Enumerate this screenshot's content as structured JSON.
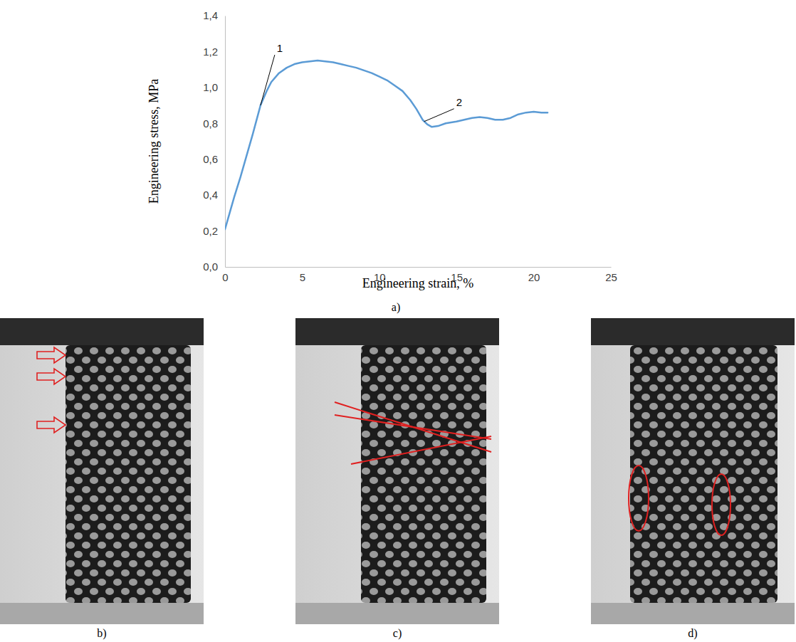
{
  "chart_data": {
    "type": "line",
    "panel_label": "a)",
    "x_label": "Engineering strain, %",
    "y_label": "Engineering stress, MPa",
    "color": "#5b9bd5",
    "xlim": [
      0,
      25
    ],
    "ylim": [
      0,
      1.4
    ],
    "xticks": [
      0,
      5,
      10,
      15,
      20,
      25
    ],
    "yticks": [
      {
        "value": 0,
        "label": "0,0"
      },
      {
        "value": 0.2,
        "label": "0,2"
      },
      {
        "value": 0.4,
        "label": "0,4"
      },
      {
        "value": 0.6,
        "label": "0,6"
      },
      {
        "value": 0.8,
        "label": "0,8"
      },
      {
        "value": 1.0,
        "label": "1,0"
      },
      {
        "value": 1.2,
        "label": "1,2"
      },
      {
        "value": 1.4,
        "label": "1,4"
      }
    ],
    "grid": false,
    "x": [
      0,
      0.3,
      0.6,
      1.0,
      1.4,
      1.8,
      2.3,
      2.7,
      3.0,
      3.5,
      4.0,
      4.5,
      5.0,
      5.5,
      6.0,
      6.5,
      7.0,
      7.5,
      8.0,
      8.5,
      9.0,
      9.5,
      10.0,
      10.5,
      11.0,
      11.5,
      12.0,
      12.4,
      12.8,
      13.1,
      13.4,
      13.8,
      14.3,
      15.0,
      15.5,
      16.0,
      16.5,
      17.0,
      17.5,
      18.0,
      18.5,
      19.0,
      19.5,
      20.0,
      20.5,
      20.9
    ],
    "values": [
      0.21,
      0.3,
      0.39,
      0.5,
      0.62,
      0.74,
      0.9,
      0.98,
      1.03,
      1.08,
      1.11,
      1.13,
      1.14,
      1.145,
      1.15,
      1.145,
      1.14,
      1.13,
      1.12,
      1.11,
      1.095,
      1.08,
      1.06,
      1.04,
      1.01,
      0.98,
      0.93,
      0.88,
      0.82,
      0.795,
      0.78,
      0.785,
      0.8,
      0.81,
      0.82,
      0.83,
      0.835,
      0.83,
      0.82,
      0.82,
      0.83,
      0.85,
      0.86,
      0.865,
      0.86,
      0.86
    ],
    "annotations": [
      {
        "text": "1",
        "x": 2.3,
        "y": 0.9
      },
      {
        "text": "2",
        "x": 12.9,
        "y": 0.81
      }
    ]
  },
  "photo_panels": [
    "b)",
    "c)",
    "d)"
  ]
}
